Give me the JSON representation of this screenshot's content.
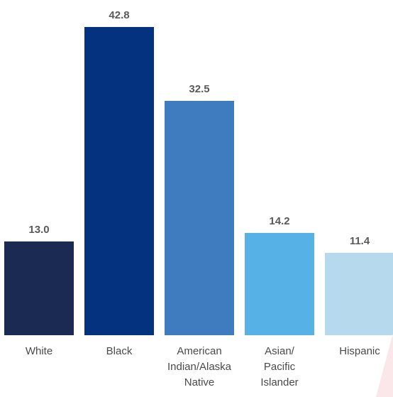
{
  "chart_data": {
    "type": "bar",
    "categories": [
      "White",
      "Black",
      "American\nIndian/Alaska\nNative",
      "Asian/\nPacific\nIslander",
      "Hispanic"
    ],
    "values": [
      13.0,
      42.8,
      32.5,
      14.2,
      11.4
    ],
    "value_labels": [
      "13.0",
      "42.8",
      "32.5",
      "14.2",
      "11.4"
    ],
    "colors": [
      "#1b2a52",
      "#04327f",
      "#3f7bbf",
      "#56b1e6",
      "#b6d9ee"
    ],
    "title": "",
    "xlabel": "",
    "ylabel": "",
    "ylim": [
      0,
      42.8
    ],
    "grid": false,
    "legend": "none"
  }
}
